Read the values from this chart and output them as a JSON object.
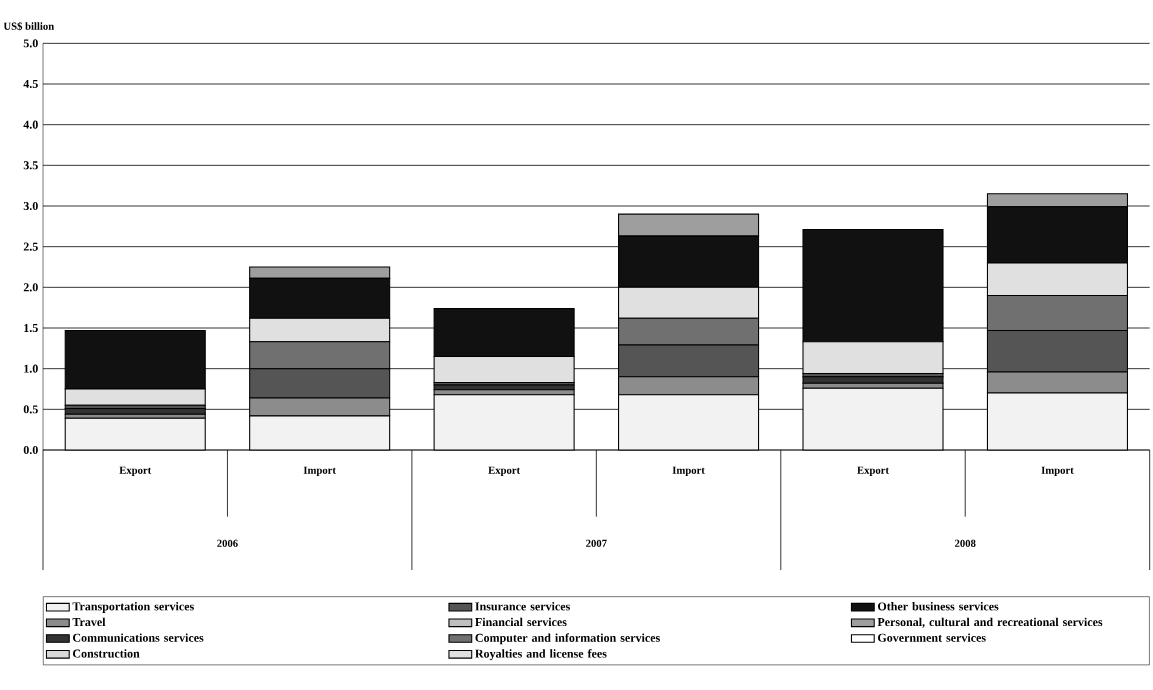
{
  "chart_data": {
    "type": "bar",
    "stacked": true,
    "ylabel": "US$ billion",
    "categories": [
      "Export",
      "Import",
      "Export",
      "Import",
      "Export",
      "Import"
    ],
    "annotations": [
      "2006",
      "2007",
      "2008"
    ],
    "ylim": [
      0,
      5
    ],
    "yticks": [
      {
        "value": 0,
        "label": "0.0"
      },
      {
        "value": 0.5,
        "label": "0.5"
      },
      {
        "value": 1,
        "label": "1.0"
      },
      {
        "value": 1.5,
        "label": "1.5"
      },
      {
        "value": 2,
        "label": "2.0"
      },
      {
        "value": 2.5,
        "label": "2.5"
      },
      {
        "value": 3,
        "label": "3.0"
      },
      {
        "value": 3.5,
        "label": "3.5"
      },
      {
        "value": 4,
        "label": "4.0"
      },
      {
        "value": 4.5,
        "label": "4.5"
      },
      {
        "value": 5,
        "label": "5.0"
      }
    ],
    "grid": "y",
    "legend": "bottom",
    "series": [
      {
        "name": "Transportation services",
        "color": "#f2f2f2",
        "values": [
          0.39,
          0.42,
          0.68,
          0.68,
          0.76,
          0.7
        ]
      },
      {
        "name": "Travel",
        "color": "#8c8c8c",
        "values": [
          0.05,
          0.22,
          0.06,
          0.22,
          0.06,
          0.26
        ]
      },
      {
        "name": "Communications services",
        "color": "#333333",
        "values": [
          0.07,
          0,
          0.06,
          0,
          0.08,
          0
        ]
      },
      {
        "name": "Construction",
        "color": "#d9d9d9",
        "values": [
          0,
          null,
          0,
          null,
          0,
          null
        ]
      },
      {
        "name": "Insurance services",
        "color": "#555555",
        "values": [
          0.04,
          0.36,
          0.03,
          0.39,
          0.04,
          0.51
        ]
      },
      {
        "name": "Financial services",
        "color": "#bfbfbf",
        "values": [
          0,
          0,
          0,
          0,
          0,
          0
        ]
      },
      {
        "name": "Computer and information services",
        "color": "#707070",
        "values": [
          0,
          0.33,
          0,
          0.33,
          0,
          0.43
        ]
      },
      {
        "name": "Royalties and license fees",
        "color": "#e0e0e0",
        "values": [
          0.2,
          0.29,
          0.32,
          0.38,
          0.39,
          0.4
        ]
      },
      {
        "name": "Other business services",
        "color": "#111111",
        "values": [
          0.72,
          0.49,
          0.59,
          0.63,
          1.38,
          0.69
        ]
      },
      {
        "name": "Personal, cultural and recreational services",
        "color": "#9e9e9e",
        "values": [
          0,
          0.14,
          0,
          0.27,
          0,
          0.16
        ]
      },
      {
        "name": "Government services",
        "color": "#ffffff",
        "values": [
          0,
          0,
          0,
          0,
          0,
          0
        ]
      }
    ]
  }
}
